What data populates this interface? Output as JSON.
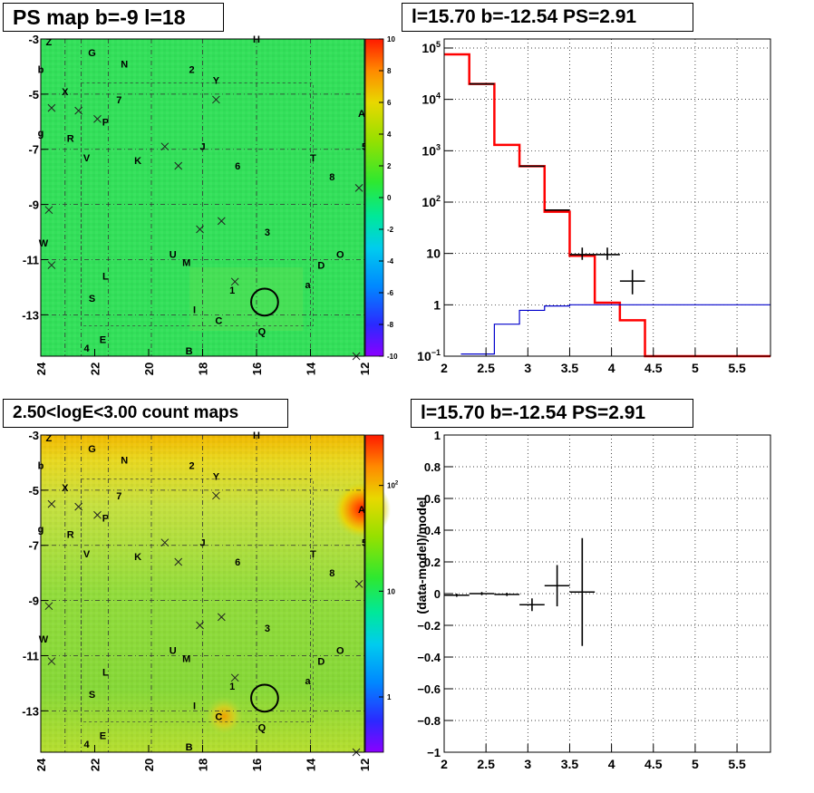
{
  "panels": {
    "map_ps_title": "PS map b=-9 l=18",
    "spectrum_title": "l=15.70 b=-12.54 PS=2.91",
    "map_count_title": "2.50<logE<3.00 count maps",
    "residual_title": "l=15.70 b=-12.54 PS=2.91"
  },
  "colors": {
    "model": "#ff0000",
    "background": "#0000cc",
    "data": "#000000",
    "green_map": "#33e05a",
    "count_map": "#8edc3c"
  },
  "chart_data": [
    {
      "type": "heatmap",
      "name": "ps-map",
      "xlim": [
        24,
        12
      ],
      "ylim": [
        -14.5,
        -3
      ],
      "x_ticks": [
        "24",
        "22",
        "20",
        "18",
        "16",
        "14",
        "12"
      ],
      "y_ticks": [
        "-3",
        "-5",
        "-7",
        "-9",
        "-11",
        "-13"
      ],
      "colorbar_ticks": [
        "10",
        "8",
        "6",
        "4",
        "2",
        "0",
        "-2",
        "-4",
        "-6",
        "-8",
        "-10"
      ],
      "colorbar_range": [
        -10,
        10
      ],
      "labels": [
        {
          "t": "Z",
          "x": 23.7,
          "y": -3.1
        },
        {
          "t": "H",
          "x": 16.0,
          "y": -3.0
        },
        {
          "t": "G",
          "x": 22.1,
          "y": -3.5
        },
        {
          "t": "N",
          "x": 20.9,
          "y": -3.9
        },
        {
          "t": "2",
          "x": 18.4,
          "y": -4.1
        },
        {
          "t": "b",
          "x": 24.0,
          "y": -4.1
        },
        {
          "t": "Y",
          "x": 17.5,
          "y": -4.5
        },
        {
          "t": "X",
          "x": 23.1,
          "y": -4.9
        },
        {
          "t": "7",
          "x": 21.1,
          "y": -5.2
        },
        {
          "t": "A",
          "x": 12.1,
          "y": -5.7
        },
        {
          "t": "P",
          "x": 21.6,
          "y": -6.0
        },
        {
          "t": "g",
          "x": 24.0,
          "y": -6.4
        },
        {
          "t": "R",
          "x": 22.9,
          "y": -6.6
        },
        {
          "t": "5",
          "x": 12.0,
          "y": -6.9
        },
        {
          "t": "J",
          "x": 18.0,
          "y": -6.9
        },
        {
          "t": "V",
          "x": 22.3,
          "y": -7.3
        },
        {
          "t": "K",
          "x": 20.4,
          "y": -7.4
        },
        {
          "t": "T",
          "x": 13.9,
          "y": -7.3
        },
        {
          "t": "6",
          "x": 16.7,
          "y": -7.6
        },
        {
          "t": "8",
          "x": 13.2,
          "y": -8.0
        },
        {
          "t": "3",
          "x": 15.6,
          "y": -10.0
        },
        {
          "t": "W",
          "x": 23.9,
          "y": -10.4
        },
        {
          "t": "O",
          "x": 12.9,
          "y": -10.8
        },
        {
          "t": "U",
          "x": 19.1,
          "y": -10.8
        },
        {
          "t": "M",
          "x": 18.6,
          "y": -11.1
        },
        {
          "t": "D",
          "x": 13.6,
          "y": -11.2
        },
        {
          "t": "L",
          "x": 21.6,
          "y": -11.6
        },
        {
          "t": "a",
          "x": 14.1,
          "y": -11.9
        },
        {
          "t": "1",
          "x": 16.9,
          "y": -12.1
        },
        {
          "t": "S",
          "x": 22.1,
          "y": -12.4
        },
        {
          "t": "I",
          "x": 18.3,
          "y": -12.8
        },
        {
          "t": "C",
          "x": 17.4,
          "y": -13.2
        },
        {
          "t": "Q",
          "x": 15.8,
          "y": -13.6
        },
        {
          "t": "E",
          "x": 21.7,
          "y": -13.9
        },
        {
          "t": "4",
          "x": 22.3,
          "y": -14.2
        },
        {
          "t": "B",
          "x": 18.5,
          "y": -14.3
        }
      ],
      "crosses": [
        {
          "x": 23.6,
          "y": -5.5
        },
        {
          "x": 22.6,
          "y": -5.6
        },
        {
          "x": 21.9,
          "y": -5.9
        },
        {
          "x": 17.5,
          "y": -5.2
        },
        {
          "x": 19.4,
          "y": -6.9
        },
        {
          "x": 18.9,
          "y": -7.6
        },
        {
          "x": 12.2,
          "y": -8.4
        },
        {
          "x": 23.7,
          "y": -9.2
        },
        {
          "x": 17.3,
          "y": -9.6
        },
        {
          "x": 18.1,
          "y": -9.9
        },
        {
          "x": 23.6,
          "y": -11.2
        },
        {
          "x": 16.8,
          "y": -11.8
        },
        {
          "x": 12.3,
          "y": -14.5
        }
      ],
      "circle": {
        "l": 15.7,
        "b": -12.54,
        "r": 0.5
      }
    },
    {
      "type": "line",
      "name": "spectrum",
      "scale_y": "log",
      "xlim": [
        2,
        5.9
      ],
      "ylim": [
        0.1,
        150000
      ],
      "x_ticks": [
        "2",
        "2.5",
        "3",
        "3.5",
        "4",
        "4.5",
        "5",
        "5.5"
      ],
      "y_ticks": [
        {
          "v": 100000,
          "t": "10",
          "e": "5"
        },
        {
          "v": 10000,
          "t": "10",
          "e": "4"
        },
        {
          "v": 1000,
          "t": "10",
          "e": "3"
        },
        {
          "v": 100,
          "t": "10",
          "e": "2"
        },
        {
          "v": 10,
          "t": "10",
          "e": ""
        },
        {
          "v": 1,
          "t": "1",
          "e": ""
        },
        {
          "v": 0.1,
          "t": "10",
          "e": "−1"
        }
      ],
      "grid": true,
      "series": [
        {
          "role": "model",
          "edges": [
            2,
            2.3,
            2.6,
            2.9,
            3.2,
            3.5,
            3.8,
            4.1,
            4.4,
            4.7,
            5.0,
            5.3,
            5.6,
            5.9
          ],
          "values": [
            75000,
            20000,
            1300,
            500,
            65,
            9,
            1.1,
            0.5,
            0.1,
            0.1,
            0.1,
            0.1,
            0.1
          ]
        },
        {
          "role": "background",
          "edges": [
            2.2,
            2.6,
            2.9,
            3.2,
            3.5,
            5.9
          ],
          "values": [
            0.11,
            0.42,
            0.78,
            0.95,
            1.0
          ]
        }
      ],
      "points": [
        {
          "x": 2.45,
          "y": 20000,
          "ex": 0.15,
          "ey": [
            0,
            0
          ]
        },
        {
          "x": 3.05,
          "y": 500,
          "ex": 0.15,
          "ey": [
            0,
            0
          ]
        },
        {
          "x": 3.35,
          "y": 70,
          "ex": 0.15,
          "ey": [
            0,
            0
          ]
        },
        {
          "x": 3.65,
          "y": 9.5,
          "ex": 0.15,
          "ey": [
            7.5,
            13
          ]
        },
        {
          "x": 3.95,
          "y": 9.5,
          "ex": 0.15,
          "ey": [
            7.5,
            13
          ]
        },
        {
          "x": 4.25,
          "y": 2.9,
          "ex": 0.15,
          "ey": [
            1.6,
            4.8
          ]
        }
      ]
    },
    {
      "type": "heatmap",
      "name": "count-map",
      "xlim": [
        24,
        12
      ],
      "ylim": [
        -14.5,
        -3
      ],
      "x_ticks": [
        "24",
        "22",
        "20",
        "18",
        "16",
        "14",
        "12"
      ],
      "y_ticks": [
        "-3",
        "-5",
        "-7",
        "-9",
        "-11",
        "-13"
      ],
      "colorbar_ticks": [
        {
          "v": 100,
          "t": "10",
          "e": "2"
        },
        {
          "v": 10,
          "t": "10",
          "e": ""
        },
        {
          "v": 1,
          "t": "1",
          "e": ""
        }
      ],
      "colorbar_range": [
        0.3,
        300
      ],
      "scale": "log"
    },
    {
      "type": "scatter",
      "name": "residual",
      "xlim": [
        2,
        5.9
      ],
      "ylim": [
        -1,
        1
      ],
      "ylabel": "(data-model)/model",
      "x_ticks": [
        "2",
        "2.5",
        "3",
        "3.5",
        "4",
        "4.5",
        "5",
        "5.5"
      ],
      "y_ticks": [
        "1",
        "0.8",
        "0.6",
        "0.4",
        "0.2",
        "0",
        "−0.2",
        "−0.4",
        "−0.6",
        "−0.8",
        "−1"
      ],
      "grid": true,
      "points": [
        {
          "x": 2.15,
          "y": -0.01,
          "ex": 0.15,
          "ey": 0.01
        },
        {
          "x": 2.45,
          "y": 0.0,
          "ex": 0.15,
          "ey": 0.01
        },
        {
          "x": 2.75,
          "y": -0.005,
          "ex": 0.15,
          "ey": 0.01
        },
        {
          "x": 3.05,
          "y": -0.07,
          "ex": 0.15,
          "ey": 0.04
        },
        {
          "x": 3.35,
          "y": 0.05,
          "ex": 0.15,
          "ey": 0.13
        },
        {
          "x": 3.65,
          "y": 0.01,
          "ex": 0.15,
          "ey": 0.34
        }
      ]
    }
  ]
}
